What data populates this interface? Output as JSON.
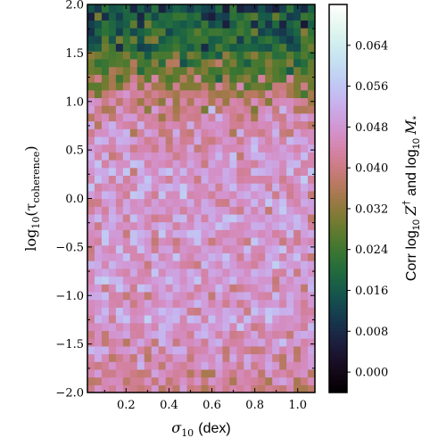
{
  "chart_data": {
    "type": "heatmap",
    "title": "",
    "xlabel_symbol": "σ",
    "xlabel_sub": "10",
    "xlabel_unit": "(dex)",
    "ylabel_prefix": "log",
    "ylabel_sub": "10",
    "ylabel_body": "(τ",
    "ylabel_body_sub": "coherence",
    "ylabel_close": ")",
    "colorbar_label_prefix": "Corr log",
    "colorbar_label_sub1": "10",
    "colorbar_label_z": "Z",
    "colorbar_label_dagger": "†",
    "colorbar_label_mid": "and log",
    "colorbar_label_sub2": "10",
    "colorbar_label_m": "M",
    "colorbar_label_star": "*",
    "xlim": [
      0.02,
      1.08
    ],
    "ylim": [
      -2.0,
      2.0
    ],
    "clim": [
      -0.004,
      0.072
    ],
    "x_ticks": [
      0.2,
      0.4,
      0.6,
      0.8,
      1.0
    ],
    "x_tick_labels": [
      "0.2",
      "0.4",
      "0.6",
      "0.8",
      "1.0"
    ],
    "y_ticks": [
      -2.0,
      -1.5,
      -1.0,
      -0.5,
      0.0,
      0.5,
      1.0,
      1.5,
      2.0
    ],
    "y_tick_labels": [
      "−2.0",
      "−1.5",
      "−1.0",
      "−0.5",
      "0.0",
      "0.5",
      "1.0",
      "1.5",
      "2.0"
    ],
    "colorbar_ticks": [
      0.0,
      0.008,
      0.016,
      0.024,
      0.032,
      0.04,
      0.048,
      0.056,
      0.064
    ],
    "colorbar_tick_labels": [
      "0.000",
      "0.008",
      "0.016",
      "0.024",
      "0.032",
      "0.040",
      "0.048",
      "0.056",
      "0.064"
    ],
    "colormap": "cubehelix",
    "grid": false,
    "n_x_bins": 32,
    "n_y_bins": 50,
    "row_mean_bottom_to_top": [
      0.041,
      0.042,
      0.043,
      0.044,
      0.045,
      0.046,
      0.046,
      0.047,
      0.047,
      0.048,
      0.048,
      0.048,
      0.048,
      0.048,
      0.048,
      0.048,
      0.048,
      0.048,
      0.048,
      0.048,
      0.048,
      0.048,
      0.048,
      0.048,
      0.048,
      0.048,
      0.048,
      0.048,
      0.048,
      0.048,
      0.047,
      0.047,
      0.046,
      0.045,
      0.044,
      0.043,
      0.041,
      0.039,
      0.036,
      0.033,
      0.03,
      0.027,
      0.025,
      0.023,
      0.021,
      0.02,
      0.019,
      0.018,
      0.017,
      0.015
    ],
    "noise_amplitude": 0.008
  }
}
